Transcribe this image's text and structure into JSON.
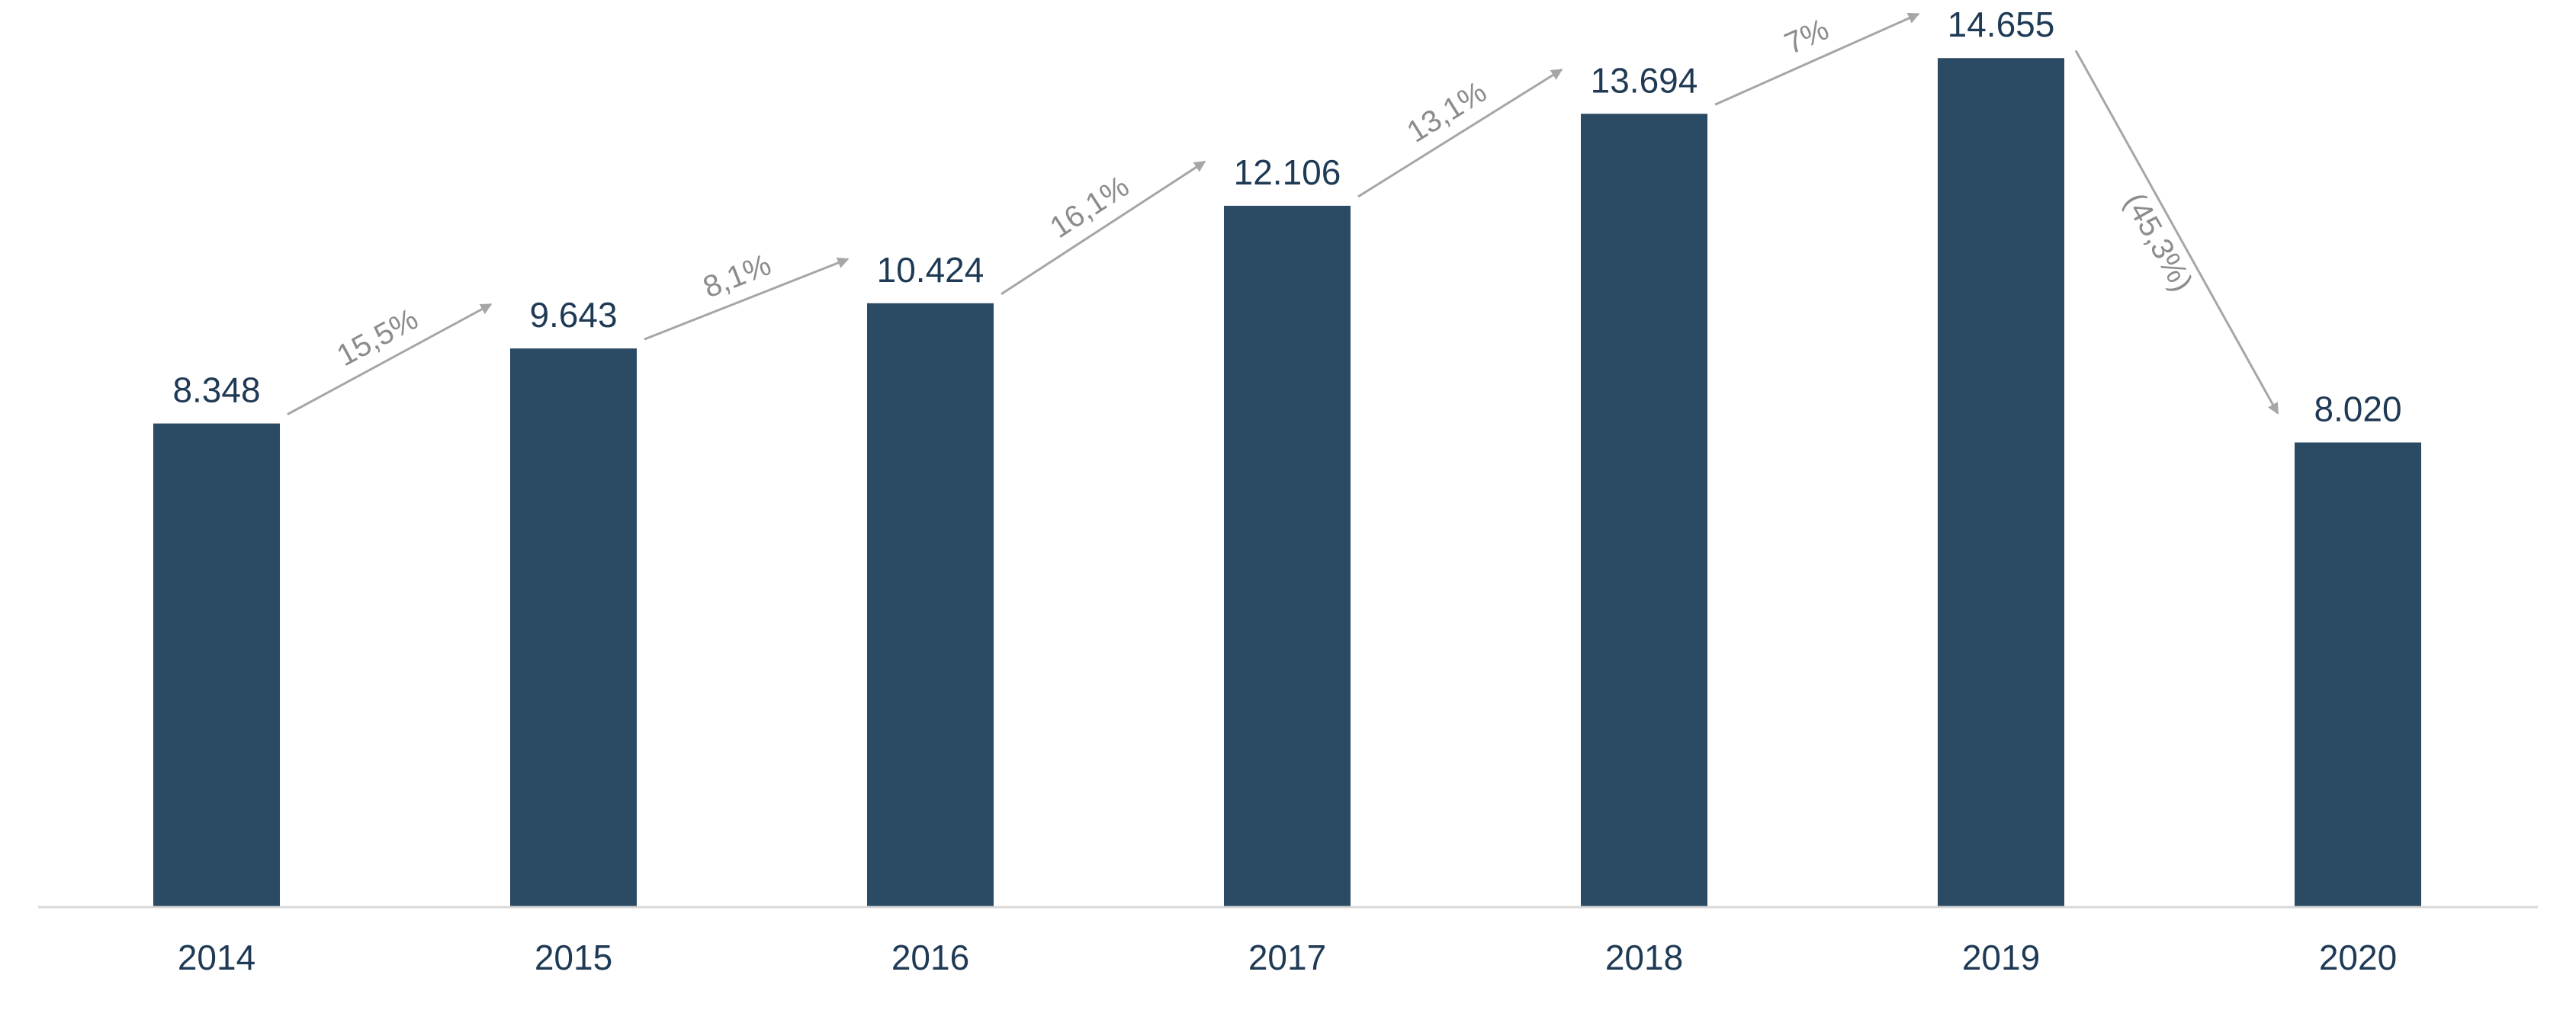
{
  "chart_data": {
    "type": "bar",
    "title": "",
    "xlabel": "",
    "ylabel": "",
    "categories": [
      "2014",
      "2015",
      "2016",
      "2017",
      "2018",
      "2019",
      "2020"
    ],
    "values": [
      8348,
      9643,
      10424,
      12106,
      13694,
      14655,
      8020
    ],
    "value_labels": [
      "8.348",
      "9.643",
      "10.424",
      "12.106",
      "13.694",
      "14.655",
      "8.020"
    ],
    "ylim": [
      0,
      15000
    ],
    "grid": false,
    "legend": "none",
    "growth_annotations": [
      {
        "from": "2014",
        "to": "2015",
        "label": "15,5%"
      },
      {
        "from": "2015",
        "to": "2016",
        "label": "8,1%"
      },
      {
        "from": "2016",
        "to": "2017",
        "label": "16,1%"
      },
      {
        "from": "2017",
        "to": "2018",
        "label": "13,1%"
      },
      {
        "from": "2018",
        "to": "2019",
        "label": "7%"
      },
      {
        "from": "2019",
        "to": "2020",
        "label": "(45,3%)"
      }
    ],
    "colors": {
      "bar": "#2b4a63",
      "value_label": "#1f3a55",
      "tick_label": "#1f3a55",
      "annotation": "#8c8c8c",
      "arrow": "#a6a6a6",
      "axis": "#d9d9d9"
    }
  }
}
